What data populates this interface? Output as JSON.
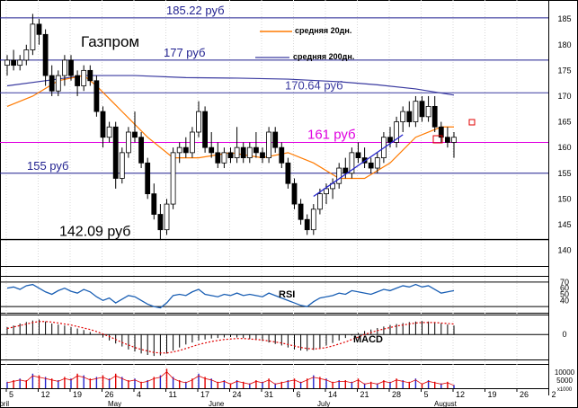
{
  "chart_data": {
    "type": "candlestick",
    "title": "Газпром",
    "price_axis": {
      "ylim": [
        138,
        188
      ],
      "ticks": [
        140,
        145,
        150,
        155,
        160,
        165,
        170,
        175,
        180,
        185
      ]
    },
    "levels": [
      {
        "label": "185.22 руб",
        "value": 185.22,
        "color": "#1f1f8f"
      },
      {
        "label": "177 руб",
        "value": 177,
        "color": "#1f1f8f"
      },
      {
        "label": "170.64 руб",
        "value": 170.64,
        "color": "#3a3aa0"
      },
      {
        "label": "161 руб",
        "value": 161,
        "color": "#e000e0"
      },
      {
        "label": "155 руб",
        "value": 155,
        "color": "#1f1f8f"
      },
      {
        "label": "142.09 руб",
        "value": 142.09,
        "color": "#000000"
      }
    ],
    "legend": [
      {
        "label": "средняя 20дн.",
        "color": "#ff7a00"
      },
      {
        "label": "средняя 200дн.",
        "color": "#3a3aa0"
      }
    ],
    "x_tick_labels": [
      "5",
      "12",
      "19",
      "26",
      "4",
      "11",
      "17",
      "24",
      "31",
      "6",
      "14",
      "21",
      "28",
      "5",
      "12",
      "19",
      "26",
      "2",
      "9",
      "16",
      "23",
      "30"
    ],
    "month_labels": [
      "April",
      "May",
      "June",
      "July",
      "August"
    ],
    "ohlc": [
      {
        "o": 176,
        "h": 178,
        "l": 174,
        "c": 177
      },
      {
        "o": 177,
        "h": 179,
        "l": 175,
        "c": 176
      },
      {
        "o": 176,
        "h": 178,
        "l": 175,
        "c": 177
      },
      {
        "o": 177,
        "h": 180,
        "l": 176,
        "c": 179
      },
      {
        "o": 179,
        "h": 186,
        "l": 178,
        "c": 184
      },
      {
        "o": 184,
        "h": 185,
        "l": 180,
        "c": 182
      },
      {
        "o": 182,
        "h": 183,
        "l": 172,
        "c": 174
      },
      {
        "o": 174,
        "h": 176,
        "l": 170,
        "c": 171
      },
      {
        "o": 171,
        "h": 175,
        "l": 170,
        "c": 174
      },
      {
        "o": 174,
        "h": 178,
        "l": 172,
        "c": 177
      },
      {
        "o": 177,
        "h": 178,
        "l": 173,
        "c": 174
      },
      {
        "o": 174,
        "h": 175,
        "l": 170,
        "c": 172
      },
      {
        "o": 172,
        "h": 176,
        "l": 171,
        "c": 175
      },
      {
        "o": 175,
        "h": 176,
        "l": 172,
        "c": 173
      },
      {
        "o": 173,
        "h": 174,
        "l": 166,
        "c": 167
      },
      {
        "o": 167,
        "h": 168,
        "l": 160,
        "c": 162
      },
      {
        "o": 162,
        "h": 165,
        "l": 161,
        "c": 164
      },
      {
        "o": 164,
        "h": 165,
        "l": 152,
        "c": 154
      },
      {
        "o": 154,
        "h": 160,
        "l": 153,
        "c": 159
      },
      {
        "o": 159,
        "h": 164,
        "l": 158,
        "c": 163
      },
      {
        "o": 163,
        "h": 167,
        "l": 161,
        "c": 162
      },
      {
        "o": 162,
        "h": 163,
        "l": 156,
        "c": 157
      },
      {
        "o": 157,
        "h": 158,
        "l": 150,
        "c": 151
      },
      {
        "o": 151,
        "h": 153,
        "l": 146,
        "c": 147
      },
      {
        "o": 147,
        "h": 149,
        "l": 142,
        "c": 144
      },
      {
        "o": 144,
        "h": 150,
        "l": 143,
        "c": 149
      },
      {
        "o": 149,
        "h": 160,
        "l": 148,
        "c": 159
      },
      {
        "o": 159,
        "h": 161,
        "l": 157,
        "c": 160
      },
      {
        "o": 160,
        "h": 162,
        "l": 158,
        "c": 159
      },
      {
        "o": 159,
        "h": 164,
        "l": 158,
        "c": 163
      },
      {
        "o": 163,
        "h": 169,
        "l": 162,
        "c": 167
      },
      {
        "o": 167,
        "h": 168,
        "l": 159,
        "c": 160
      },
      {
        "o": 160,
        "h": 163,
        "l": 158,
        "c": 159
      },
      {
        "o": 159,
        "h": 161,
        "l": 156,
        "c": 157
      },
      {
        "o": 157,
        "h": 160,
        "l": 156,
        "c": 159
      },
      {
        "o": 159,
        "h": 160,
        "l": 157,
        "c": 158
      },
      {
        "o": 158,
        "h": 164,
        "l": 157,
        "c": 160
      },
      {
        "o": 160,
        "h": 161,
        "l": 157,
        "c": 158
      },
      {
        "o": 158,
        "h": 161,
        "l": 157,
        "c": 160
      },
      {
        "o": 160,
        "h": 163,
        "l": 158,
        "c": 159
      },
      {
        "o": 159,
        "h": 160,
        "l": 157,
        "c": 158
      },
      {
        "o": 158,
        "h": 164,
        "l": 157,
        "c": 163
      },
      {
        "o": 163,
        "h": 164,
        "l": 159,
        "c": 160
      },
      {
        "o": 160,
        "h": 161,
        "l": 156,
        "c": 157
      },
      {
        "o": 157,
        "h": 158,
        "l": 152,
        "c": 153
      },
      {
        "o": 153,
        "h": 154,
        "l": 148,
        "c": 149
      },
      {
        "o": 149,
        "h": 150,
        "l": 145,
        "c": 146
      },
      {
        "o": 146,
        "h": 147,
        "l": 143,
        "c": 144
      },
      {
        "o": 144,
        "h": 149,
        "l": 143,
        "c": 148
      },
      {
        "o": 148,
        "h": 152,
        "l": 147,
        "c": 151
      },
      {
        "o": 151,
        "h": 153,
        "l": 149,
        "c": 152
      },
      {
        "o": 152,
        "h": 154,
        "l": 150,
        "c": 153
      },
      {
        "o": 153,
        "h": 157,
        "l": 152,
        "c": 156
      },
      {
        "o": 156,
        "h": 158,
        "l": 154,
        "c": 155
      },
      {
        "o": 155,
        "h": 160,
        "l": 154,
        "c": 159
      },
      {
        "o": 159,
        "h": 161,
        "l": 157,
        "c": 158
      },
      {
        "o": 158,
        "h": 160,
        "l": 156,
        "c": 157
      },
      {
        "o": 157,
        "h": 158,
        "l": 155,
        "c": 156
      },
      {
        "o": 156,
        "h": 159,
        "l": 155,
        "c": 158
      },
      {
        "o": 158,
        "h": 163,
        "l": 157,
        "c": 162
      },
      {
        "o": 162,
        "h": 164,
        "l": 160,
        "c": 161
      },
      {
        "o": 161,
        "h": 166,
        "l": 160,
        "c": 165
      },
      {
        "o": 165,
        "h": 168,
        "l": 163,
        "c": 167
      },
      {
        "o": 167,
        "h": 169,
        "l": 164,
        "c": 165
      },
      {
        "o": 165,
        "h": 170,
        "l": 164,
        "c": 169
      },
      {
        "o": 169,
        "h": 170,
        "l": 165,
        "c": 166
      },
      {
        "o": 166,
        "h": 170,
        "l": 165,
        "c": 168
      },
      {
        "o": 168,
        "h": 170,
        "l": 163,
        "c": 164
      },
      {
        "o": 164,
        "h": 165,
        "l": 161,
        "c": 162
      },
      {
        "o": 162,
        "h": 164,
        "l": 160,
        "c": 161
      },
      {
        "o": 161,
        "h": 163,
        "l": 158,
        "c": 162
      }
    ],
    "ma20": [
      {
        "i": 0,
        "v": 168
      },
      {
        "i": 4,
        "v": 170
      },
      {
        "i": 8,
        "v": 173
      },
      {
        "i": 12,
        "v": 174
      },
      {
        "i": 14,
        "v": 172
      },
      {
        "i": 18,
        "v": 167
      },
      {
        "i": 22,
        "v": 162
      },
      {
        "i": 26,
        "v": 158
      },
      {
        "i": 30,
        "v": 158
      },
      {
        "i": 35,
        "v": 159
      },
      {
        "i": 40,
        "v": 158
      },
      {
        "i": 44,
        "v": 159
      },
      {
        "i": 48,
        "v": 157
      },
      {
        "i": 52,
        "v": 154
      },
      {
        "i": 56,
        "v": 154
      },
      {
        "i": 60,
        "v": 157
      },
      {
        "i": 64,
        "v": 162
      },
      {
        "i": 68,
        "v": 164
      },
      {
        "i": 70,
        "v": 164
      }
    ],
    "ma200": [
      {
        "i": 0,
        "v": 172
      },
      {
        "i": 6,
        "v": 173
      },
      {
        "i": 12,
        "v": 174
      },
      {
        "i": 20,
        "v": 174
      },
      {
        "i": 28,
        "v": 173.6
      },
      {
        "i": 36,
        "v": 173.5
      },
      {
        "i": 44,
        "v": 173.3
      },
      {
        "i": 52,
        "v": 172.8
      },
      {
        "i": 58,
        "v": 172.2
      },
      {
        "i": 64,
        "v": 171.4
      },
      {
        "i": 70,
        "v": 170.2
      }
    ],
    "trendline": [
      {
        "i": 48,
        "v": 150.5
      },
      {
        "i": 62,
        "v": 162.5
      }
    ],
    "rsi": {
      "label": "RSI",
      "ylim": [
        20,
        80
      ],
      "ticks": [
        40,
        50,
        60,
        70
      ],
      "guides": [
        30,
        70
      ],
      "values": [
        60,
        62,
        58,
        64,
        66,
        60,
        54,
        50,
        56,
        60,
        55,
        52,
        58,
        54,
        46,
        40,
        44,
        36,
        42,
        48,
        46,
        40,
        34,
        30,
        28,
        36,
        48,
        50,
        48,
        54,
        58,
        50,
        48,
        46,
        50,
        48,
        52,
        48,
        50,
        48,
        46,
        52,
        48,
        44,
        40,
        36,
        32,
        30,
        38,
        44,
        46,
        48,
        52,
        50,
        56,
        54,
        52,
        50,
        54,
        58,
        56,
        60,
        64,
        62,
        66,
        62,
        64,
        58,
        52,
        54,
        56
      ]
    },
    "macd": {
      "label": "MACD",
      "ylim": [
        -5,
        4
      ],
      "ticks": [
        0
      ],
      "hist": [
        1.5,
        1.8,
        2.2,
        2.5,
        2.8,
        3,
        2.6,
        2.2,
        2,
        1.8,
        1.5,
        1.2,
        0.9,
        0.5,
        0,
        -0.6,
        -1.2,
        -1.8,
        -2.4,
        -3,
        -3.4,
        -3.8,
        -4.1,
        -4.3,
        -4.2,
        -3.8,
        -3.2,
        -2.6,
        -2,
        -1.6,
        -1.2,
        -1,
        -0.8,
        -0.7,
        -0.6,
        -0.5,
        -0.6,
        -0.7,
        -0.9,
        -1.1,
        -1.3,
        -1.6,
        -1.9,
        -2.2,
        -2.6,
        -3,
        -3.2,
        -3.3,
        -3.1,
        -2.7,
        -2.2,
        -1.7,
        -1.2,
        -0.7,
        -0.2,
        0.3,
        0.7,
        1,
        1.3,
        1.6,
        1.9,
        2.1,
        2.3,
        2.5,
        2.6,
        2.7,
        2.6,
        2.4,
        2.2,
        2,
        1.8
      ],
      "signal": [
        1.2,
        1.5,
        1.8,
        2.1,
        2.4,
        2.6,
        2.6,
        2.5,
        2.3,
        2.1,
        1.9,
        1.6,
        1.3,
        1,
        0.6,
        0.1,
        -0.4,
        -1,
        -1.6,
        -2.1,
        -2.6,
        -3,
        -3.3,
        -3.6,
        -3.7,
        -3.7,
        -3.5,
        -3.2,
        -2.8,
        -2.4,
        -2,
        -1.7,
        -1.4,
        -1.2,
        -1,
        -0.9,
        -0.8,
        -0.8,
        -0.9,
        -1,
        -1.1,
        -1.3,
        -1.5,
        -1.7,
        -2,
        -2.3,
        -2.6,
        -2.8,
        -2.9,
        -2.8,
        -2.6,
        -2.3,
        -1.9,
        -1.5,
        -1,
        -0.5,
        0,
        0.4,
        0.8,
        1.1,
        1.4,
        1.7,
        1.9,
        2.1,
        2.3,
        2.4,
        2.4,
        2.4,
        2.3,
        2.2,
        2.1
      ]
    },
    "volume": {
      "ylim": [
        0,
        15000
      ],
      "ticks": [
        10000,
        5000
      ],
      "unit_label": "x1000",
      "values": [
        4000,
        5000,
        6000,
        5000,
        9000,
        8000,
        7000,
        6000,
        5000,
        7000,
        6000,
        9000,
        8000,
        6000,
        7000,
        8000,
        6000,
        9000,
        7000,
        5000,
        6000,
        4000,
        5000,
        7000,
        8000,
        12000,
        7000,
        5000,
        4000,
        6000,
        9000,
        7000,
        6000,
        4000,
        5000,
        3000,
        5000,
        4000,
        3000,
        5000,
        4000,
        6000,
        3000,
        4000,
        5000,
        6000,
        4000,
        6000,
        8000,
        7000,
        6000,
        4000,
        5000,
        5000,
        4000,
        6000,
        3000,
        4000,
        3000,
        5000,
        4000,
        6000,
        5000,
        4000,
        6000,
        3000,
        5000,
        4000,
        3000,
        4000,
        2000
      ]
    }
  }
}
